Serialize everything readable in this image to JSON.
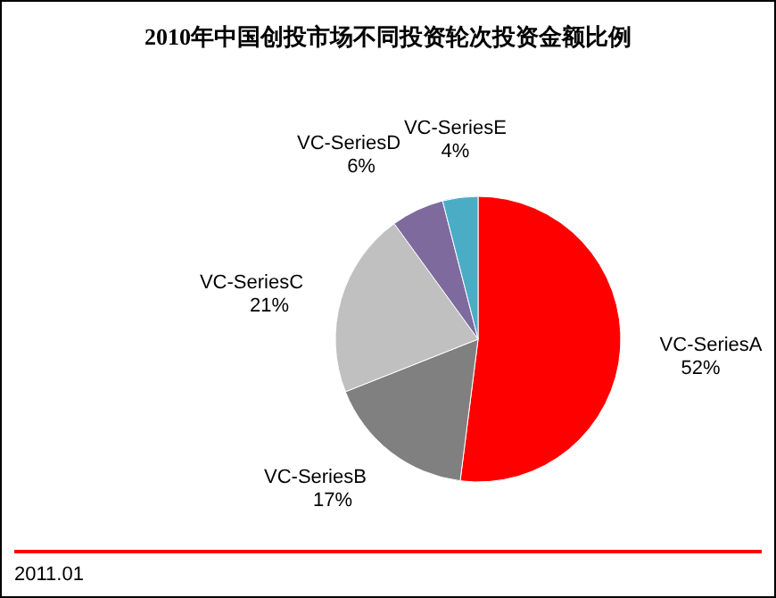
{
  "chart_data": {
    "type": "pie",
    "title": "2010年中国创投市场不同投资轮次投资金额比例",
    "categories": [
      "VC-SeriesA",
      "VC-SeriesB",
      "VC-SeriesC",
      "VC-SeriesD",
      "VC-SeriesE"
    ],
    "values": [
      52,
      17,
      21,
      6,
      4
    ],
    "colors": [
      "#ff0000",
      "#808080",
      "#c0c0c0",
      "#7f6a9e",
      "#4bacc6"
    ],
    "value_labels": [
      "52%",
      "17%",
      "21%",
      "6%",
      "4%"
    ],
    "annotations": [
      "2011.01"
    ]
  }
}
